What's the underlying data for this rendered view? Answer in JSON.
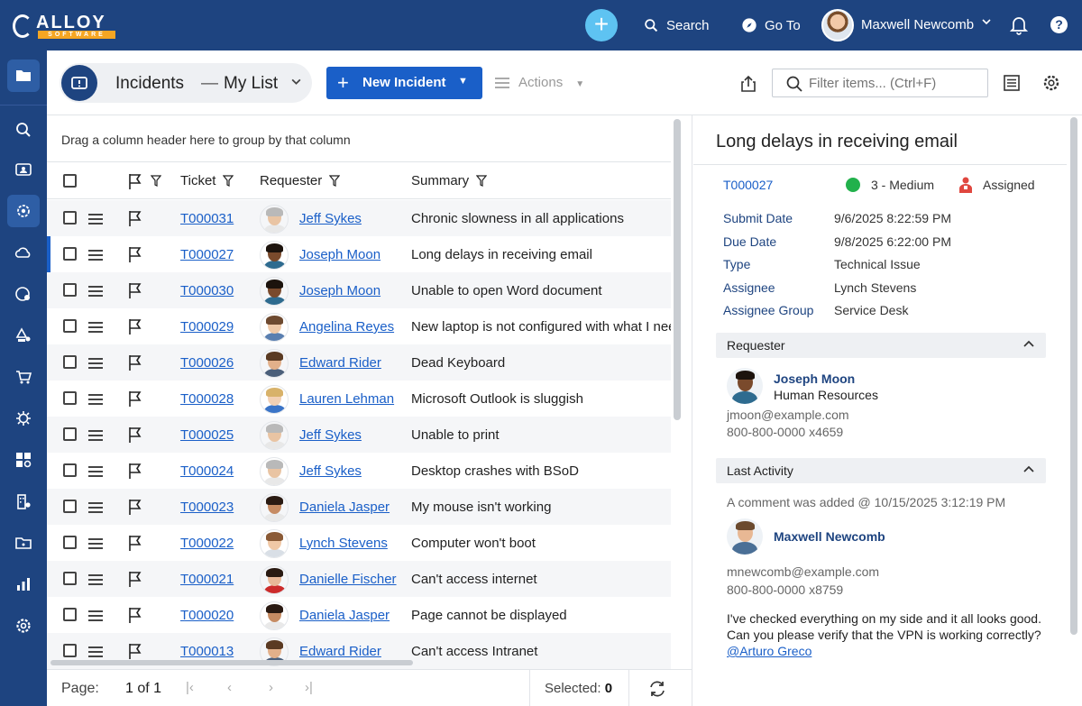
{
  "header": {
    "logo_text": "ALLOY",
    "logo_sub": "SOFTWARE",
    "search_label": "Search",
    "goto_label": "Go To",
    "user_name": "Maxwell Newcomb",
    "help_glyph": "?"
  },
  "sidebar": {
    "items": [
      "folder-icon",
      "search-icon",
      "incidents-icon",
      "service-desk-icon",
      "cloud-settings-icon",
      "support-settings-icon",
      "config-icon",
      "cart-icon",
      "virus-icon",
      "dashboard-icon",
      "building-icon",
      "folder-settings-icon",
      "reports-icon",
      "gear-icon"
    ]
  },
  "toolbar": {
    "crumb_title": "Incidents",
    "crumb_dash": "—",
    "crumb_list": "My List",
    "new_label": "New Incident",
    "actions_label": "Actions",
    "filter_placeholder": "Filter items... (Ctrl+F)"
  },
  "grid": {
    "group_hint": "Drag a column header here to group by that column",
    "columns": {
      "ticket": "Ticket",
      "requester": "Requester",
      "summary": "Summary"
    },
    "rows": [
      {
        "ticket": "T000031",
        "requester": "Jeff Sykes",
        "summary": "Chronic slowness in all applications"
      },
      {
        "ticket": "T000027",
        "requester": "Joseph Moon",
        "summary": "Long delays in receiving email"
      },
      {
        "ticket": "T000030",
        "requester": "Joseph Moon",
        "summary": "Unable to open Word document"
      },
      {
        "ticket": "T000029",
        "requester": "Angelina Reyes",
        "summary": "New laptop is not configured with what I need"
      },
      {
        "ticket": "T000026",
        "requester": "Edward Rider",
        "summary": "Dead Keyboard"
      },
      {
        "ticket": "T000028",
        "requester": "Lauren Lehman",
        "summary": "Microsoft Outlook is sluggish"
      },
      {
        "ticket": "T000025",
        "requester": "Jeff Sykes",
        "summary": "Unable to print"
      },
      {
        "ticket": "T000024",
        "requester": "Jeff Sykes",
        "summary": "Desktop crashes with BSoD"
      },
      {
        "ticket": "T000023",
        "requester": "Daniela Jasper",
        "summary": "My mouse isn't working"
      },
      {
        "ticket": "T000022",
        "requester": "Lynch Stevens",
        "summary": "Computer won't boot"
      },
      {
        "ticket": "T000021",
        "requester": "Danielle Fischer",
        "summary": "Can't access internet"
      },
      {
        "ticket": "T000020",
        "requester": "Daniela Jasper",
        "summary": "Page cannot be displayed"
      },
      {
        "ticket": "T000013",
        "requester": "Edward Rider",
        "summary": "Can't access Intranet"
      }
    ],
    "selected_ticket": "T000027"
  },
  "pager": {
    "page_label": "Page:",
    "page_current": "1",
    "page_of": "of",
    "page_total": "1",
    "selected_label": "Selected:",
    "selected_count": "0"
  },
  "detail": {
    "title": "Long delays in receiving email",
    "ticket": "T000027",
    "priority": "3 - Medium",
    "priority_color": "#22b14c",
    "status": "Assigned",
    "fields": [
      {
        "label": "Submit Date",
        "value": "9/6/2025 8:22:59 PM"
      },
      {
        "label": "Due Date",
        "value": "9/8/2025 6:22:00 PM"
      },
      {
        "label": "Type",
        "value": "Technical Issue"
      },
      {
        "label": "Assignee",
        "value": "Lynch Stevens"
      },
      {
        "label": "Assignee Group",
        "value": "Service Desk"
      }
    ],
    "requester": {
      "section_label": "Requester",
      "name": "Joseph Moon",
      "department": "Human Resources",
      "email": "jmoon@example.com",
      "phone": "800-800-0000 x4659"
    },
    "activity": {
      "section_label": "Last Activity",
      "headline": "A comment was added @ 10/15/2025 3:12:19 PM",
      "author": "Maxwell Newcomb",
      "email": "mnewcomb@example.com",
      "phone": "800-800-0000 x8759",
      "comment_text": "I've checked everything on my side and it all looks good. Can you please verify that the VPN is working correctly?",
      "mention": "@Arturo Greco"
    }
  },
  "colors": {
    "brand": "#1e4480",
    "accent": "#1a5fc8",
    "plus": "#5ec3f2",
    "logo_orange": "#f5a623"
  }
}
